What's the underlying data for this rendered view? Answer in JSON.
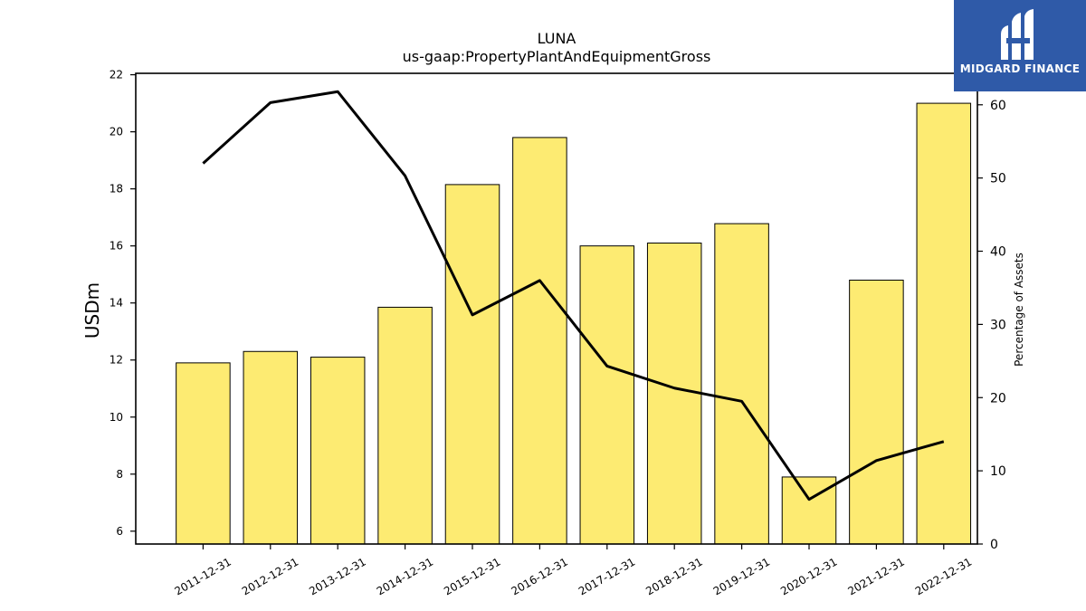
{
  "chart_data": {
    "type": "bar",
    "title": "LUNA",
    "subtitle": "us-gaap:PropertyPlantAndEquipmentGross",
    "ylabel": "USDm",
    "y2label": "Percentage of Assets",
    "categories": [
      "2011-12-31",
      "2012-12-31",
      "2013-12-31",
      "2014-12-31",
      "2015-12-31",
      "2016-12-31",
      "2017-12-31",
      "2018-12-31",
      "2019-12-31",
      "2020-12-31",
      "2021-12-31",
      "2022-12-31"
    ],
    "series": [
      {
        "type": "bar",
        "axis": "left",
        "color": "#fdeb72",
        "values": [
          11.9,
          12.3,
          12.1,
          13.85,
          18.15,
          19.8,
          16.0,
          16.1,
          16.78,
          7.9,
          14.8,
          21.0
        ]
      },
      {
        "type": "line",
        "axis": "right",
        "color": "#000000",
        "values": [
          52.0,
          60.3,
          61.8,
          50.3,
          31.3,
          36.0,
          24.3,
          21.3,
          19.5,
          6.1,
          11.4,
          14.0
        ]
      }
    ],
    "ylim": [
      5.55,
      22.05
    ],
    "y2lim": [
      0,
      64.3
    ],
    "yticks": [
      6,
      8,
      10,
      12,
      14,
      16,
      18,
      20,
      22
    ],
    "y2ticks": [
      0,
      10,
      20,
      30,
      40,
      50,
      60
    ],
    "grid": false,
    "legend": "none"
  },
  "logo": {
    "text": "MIDGARD FINANCE",
    "bg_color": "#2f5aa8"
  }
}
